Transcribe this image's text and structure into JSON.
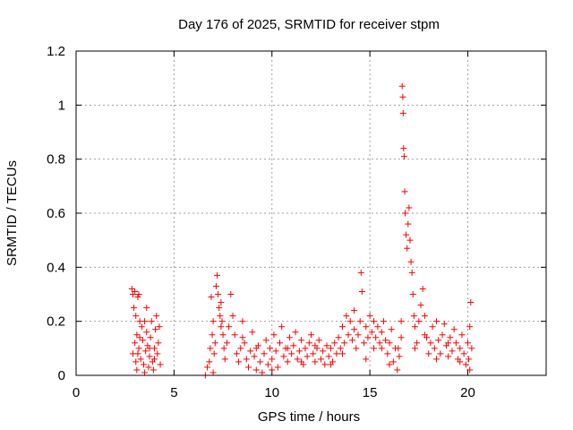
{
  "chart_data": {
    "type": "scatter",
    "title": "Day 176 of 2025, SRMTID for receiver stpm",
    "xlabel": "GPS time / hours",
    "ylabel": "SRMTID / TECUs",
    "xlim": [
      0,
      24
    ],
    "ylim": [
      0,
      1.2
    ],
    "xticks": [
      0,
      5,
      10,
      15,
      20
    ],
    "yticks": [
      0,
      0.2,
      0.4,
      0.6,
      0.8,
      1.0,
      1.2
    ],
    "xtick_labels": [
      "0",
      "5",
      "10",
      "15",
      "20"
    ],
    "ytick_labels": [
      "0",
      "0.2",
      "0.4",
      "0.6",
      "0.8",
      "1",
      "1.2"
    ],
    "grid": true,
    "marker": "+",
    "series_color": "#ff0000",
    "series": [
      {
        "name": "stpm",
        "points": [
          [
            2.85,
            0.32
          ],
          [
            2.9,
            0.3
          ],
          [
            2.95,
            0.25
          ],
          [
            3.0,
            0.31
          ],
          [
            3.05,
            0.22
          ],
          [
            3.1,
            0.15
          ],
          [
            3.15,
            0.29
          ],
          [
            3.2,
            0.3
          ],
          [
            3.25,
            0.2
          ],
          [
            3.0,
            0.12
          ],
          [
            2.9,
            0.08
          ],
          [
            3.05,
            0.05
          ],
          [
            3.1,
            0.02
          ],
          [
            3.2,
            0.1
          ],
          [
            3.3,
            0.06
          ],
          [
            3.35,
            0.18
          ],
          [
            3.4,
            0.13
          ],
          [
            3.45,
            0.04
          ],
          [
            3.5,
            0.01
          ],
          [
            3.55,
            0.09
          ],
          [
            3.6,
            0.16
          ],
          [
            3.65,
            0.11
          ],
          [
            3.7,
            0.03
          ],
          [
            3.75,
            0.07
          ],
          [
            3.8,
            0.14
          ],
          [
            3.85,
            0.2
          ],
          [
            3.9,
            0.05
          ],
          [
            3.95,
            0.02
          ],
          [
            4.0,
            0.1
          ],
          [
            4.05,
            0.17
          ],
          [
            4.1,
            0.22
          ],
          [
            4.15,
            0.08
          ],
          [
            4.2,
            0.12
          ],
          [
            4.25,
            0.18
          ],
          [
            4.3,
            0.04
          ],
          [
            3.15,
            0.08
          ],
          [
            3.25,
            0.14
          ],
          [
            3.5,
            0.2
          ],
          [
            3.75,
            0.1
          ],
          [
            4.0,
            0.06
          ],
          [
            3.6,
            0.25
          ],
          [
            6.6,
            0.0
          ],
          [
            6.7,
            0.03
          ],
          [
            6.8,
            0.05
          ],
          [
            6.85,
            0.1
          ],
          [
            6.9,
            0.29
          ],
          [
            6.95,
            0.15
          ],
          [
            7.0,
            0.2
          ],
          [
            7.05,
            0.08
          ],
          [
            7.1,
            0.12
          ],
          [
            7.15,
            0.33
          ],
          [
            7.2,
            0.37
          ],
          [
            7.25,
            0.3
          ],
          [
            7.3,
            0.25
          ],
          [
            7.35,
            0.22
          ],
          [
            7.4,
            0.27
          ],
          [
            7.45,
            0.2
          ],
          [
            7.5,
            0.15
          ],
          [
            7.55,
            0.1
          ],
          [
            7.6,
            0.06
          ],
          [
            7.7,
            0.12
          ],
          [
            7.8,
            0.18
          ],
          [
            7.9,
            0.3
          ],
          [
            8.0,
            0.22
          ],
          [
            8.1,
            0.15
          ],
          [
            8.2,
            0.08
          ],
          [
            8.3,
            0.05
          ],
          [
            8.4,
            0.1
          ],
          [
            8.5,
            0.2
          ],
          [
            8.6,
            0.12
          ],
          [
            8.7,
            0.06
          ],
          [
            8.8,
            0.03
          ],
          [
            8.9,
            0.09
          ],
          [
            9.0,
            0.16
          ],
          [
            9.1,
            0.07
          ],
          [
            9.2,
            0.02
          ],
          [
            9.3,
            0.11
          ],
          [
            9.4,
            0.05
          ],
          [
            9.5,
            0.01
          ],
          [
            9.6,
            0.08
          ],
          [
            9.7,
            0.13
          ],
          [
            9.8,
            0.04
          ],
          [
            9.9,
            0.1
          ],
          [
            10.0,
            0.06
          ],
          [
            10.1,
            0.15
          ],
          [
            10.2,
            0.09
          ],
          [
            10.3,
            0.03
          ],
          [
            10.4,
            0.12
          ],
          [
            10.5,
            0.18
          ],
          [
            10.6,
            0.07
          ],
          [
            10.7,
            0.1
          ],
          [
            10.8,
            0.05
          ],
          [
            10.9,
            0.14
          ],
          [
            11.0,
            0.08
          ],
          [
            11.1,
            0.11
          ],
          [
            11.2,
            0.16
          ],
          [
            11.3,
            0.06
          ],
          [
            11.4,
            0.09
          ],
          [
            11.5,
            0.13
          ],
          [
            11.6,
            0.04
          ],
          [
            11.7,
            0.1
          ],
          [
            11.8,
            0.07
          ],
          [
            11.9,
            0.12
          ],
          [
            12.0,
            0.15
          ],
          [
            12.1,
            0.08
          ],
          [
            12.2,
            0.05
          ],
          [
            12.3,
            0.1
          ],
          [
            12.4,
            0.13
          ],
          [
            12.5,
            0.06
          ],
          [
            12.6,
            0.09
          ],
          [
            12.7,
            0.04
          ],
          [
            12.8,
            0.11
          ],
          [
            12.9,
            0.07
          ],
          [
            13.0,
            0.1
          ],
          [
            13.1,
            0.05
          ],
          [
            13.2,
            0.12
          ],
          [
            13.3,
            0.08
          ],
          [
            13.4,
            0.14
          ],
          [
            13.5,
            0.1
          ],
          [
            13.6,
            0.18
          ],
          [
            13.7,
            0.12
          ],
          [
            13.8,
            0.22
          ],
          [
            13.9,
            0.15
          ],
          [
            14.0,
            0.2
          ],
          [
            14.1,
            0.13
          ],
          [
            14.2,
            0.17
          ],
          [
            14.3,
            0.1
          ],
          [
            14.4,
            0.15
          ],
          [
            14.5,
            0.2
          ],
          [
            14.55,
            0.38
          ],
          [
            14.6,
            0.31
          ],
          [
            14.7,
            0.12
          ],
          [
            14.8,
            0.18
          ],
          [
            14.9,
            0.14
          ],
          [
            15.0,
            0.22
          ],
          [
            15.1,
            0.16
          ],
          [
            15.2,
            0.1
          ],
          [
            15.3,
            0.14
          ],
          [
            15.4,
            0.18
          ],
          [
            15.5,
            0.12
          ],
          [
            15.6,
            0.16
          ],
          [
            15.7,
            0.2
          ],
          [
            15.8,
            0.13
          ],
          [
            15.9,
            0.08
          ],
          [
            16.0,
            0.12
          ],
          [
            16.1,
            0.17
          ],
          [
            16.2,
            0.05
          ],
          [
            16.3,
            0.1
          ],
          [
            16.4,
            0.02
          ],
          [
            16.5,
            0.07
          ],
          [
            16.6,
            0.14
          ],
          [
            16.65,
            1.07
          ],
          [
            16.68,
            1.03
          ],
          [
            16.7,
            0.97
          ],
          [
            16.72,
            0.84
          ],
          [
            16.75,
            0.81
          ],
          [
            16.78,
            0.68
          ],
          [
            16.8,
            0.6
          ],
          [
            16.85,
            0.52
          ],
          [
            16.9,
            0.47
          ],
          [
            16.95,
            0.56
          ],
          [
            17.0,
            0.62
          ],
          [
            17.05,
            0.5
          ],
          [
            17.1,
            0.42
          ],
          [
            17.15,
            0.38
          ],
          [
            17.2,
            0.3
          ],
          [
            17.25,
            0.22
          ],
          [
            17.3,
            0.18
          ],
          [
            17.4,
            0.12
          ],
          [
            17.5,
            0.2
          ],
          [
            17.6,
            0.26
          ],
          [
            17.7,
            0.32
          ],
          [
            17.8,
            0.22
          ],
          [
            17.9,
            0.14
          ],
          [
            18.0,
            0.08
          ],
          [
            18.1,
            0.12
          ],
          [
            18.2,
            0.18
          ],
          [
            18.3,
            0.1
          ],
          [
            18.4,
            0.06
          ],
          [
            18.5,
            0.13
          ],
          [
            18.6,
            0.08
          ],
          [
            18.7,
            0.15
          ],
          [
            18.8,
            0.19
          ],
          [
            18.9,
            0.11
          ],
          [
            19.0,
            0.07
          ],
          [
            19.1,
            0.14
          ],
          [
            19.2,
            0.09
          ],
          [
            19.3,
            0.17
          ],
          [
            19.4,
            0.12
          ],
          [
            19.5,
            0.06
          ],
          [
            19.6,
            0.1
          ],
          [
            19.7,
            0.15
          ],
          [
            19.8,
            0.08
          ],
          [
            19.9,
            0.04
          ],
          [
            20.0,
            0.12
          ],
          [
            20.05,
            0.06
          ],
          [
            20.1,
            0.02
          ],
          [
            20.15,
            0.27
          ],
          [
            20.2,
            0.1
          ],
          [
            7.0,
            0.01
          ],
          [
            7.4,
            0.18
          ],
          [
            8.5,
            0.14
          ],
          [
            9.2,
            0.1
          ],
          [
            10.0,
            0.02
          ],
          [
            10.8,
            0.1
          ],
          [
            11.5,
            0.05
          ],
          [
            12.2,
            0.11
          ],
          [
            13.0,
            0.04
          ],
          [
            13.6,
            0.08
          ],
          [
            14.2,
            0.24
          ],
          [
            14.8,
            0.06
          ],
          [
            15.2,
            0.2
          ],
          [
            15.6,
            0.1
          ],
          [
            16.0,
            0.04
          ],
          [
            16.45,
            0.1
          ],
          [
            16.6,
            0.2
          ],
          [
            17.3,
            0.1
          ],
          [
            17.8,
            0.15
          ],
          [
            18.4,
            0.2
          ],
          [
            19.0,
            0.12
          ],
          [
            19.6,
            0.05
          ],
          [
            20.1,
            0.18
          ]
        ]
      }
    ]
  }
}
